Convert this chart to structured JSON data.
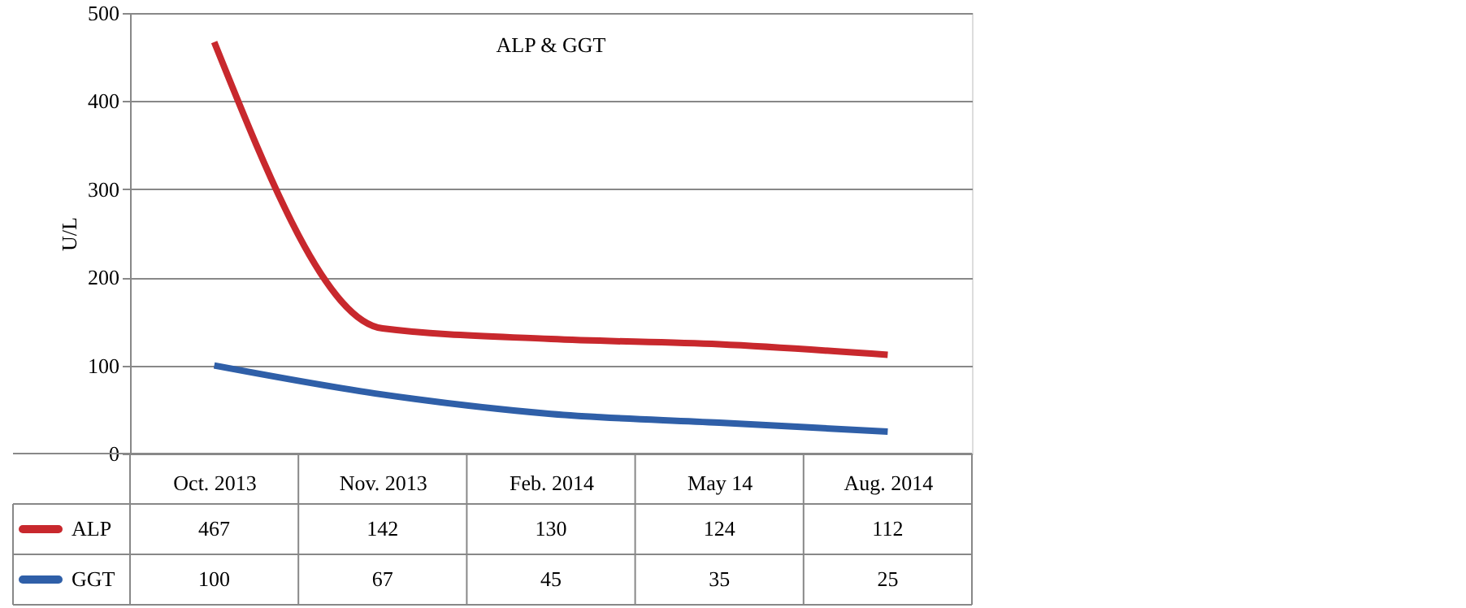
{
  "chart_data": {
    "type": "line",
    "title": "ALP & GGT",
    "ylabel": "U/L",
    "categories": [
      "Oct. 2013",
      "Nov. 2013",
      "Feb. 2014",
      "May 14",
      "Aug. 2014"
    ],
    "series": [
      {
        "name": "ALP",
        "color": "#c8282d",
        "values": [
          467,
          142,
          130,
          124,
          112
        ]
      },
      {
        "name": "GGT",
        "color": "#2f5fa8",
        "values": [
          100,
          67,
          45,
          35,
          25
        ]
      }
    ],
    "ylim": [
      0,
      500
    ],
    "yticks": [
      0,
      100,
      200,
      300,
      400,
      500
    ],
    "grid": "y",
    "legend": "bottom left",
    "data_labels": true,
    "marker": "none",
    "line_style": "solid"
  }
}
